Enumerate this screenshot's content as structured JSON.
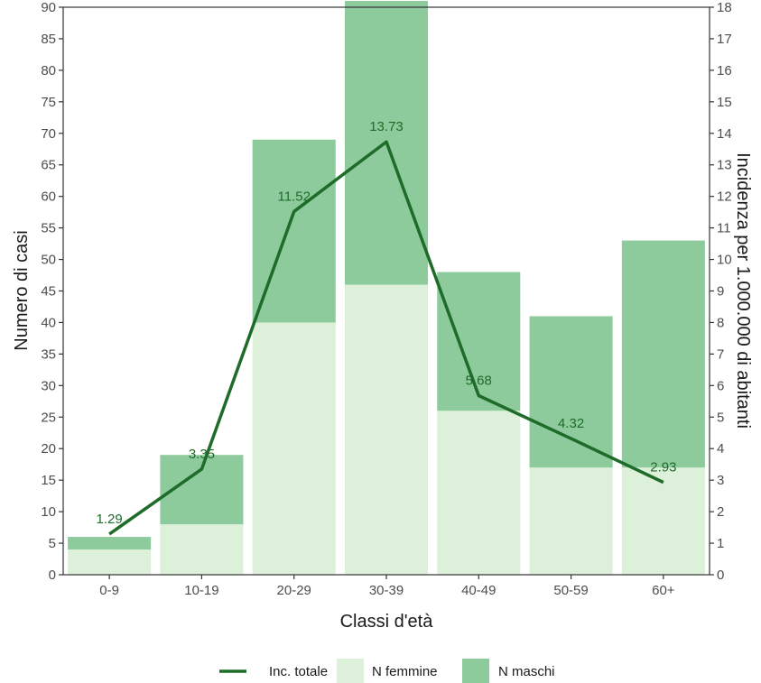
{
  "chart_data": {
    "type": "bar",
    "stacked": true,
    "categories": [
      "0-9",
      "10-19",
      "20-29",
      "30-39",
      "40-49",
      "50-59",
      "60+"
    ],
    "series": [
      {
        "name": "N femmine",
        "type": "bar",
        "axis": "left",
        "color": "#dcf0da",
        "values": [
          4,
          8,
          40,
          46,
          26,
          17,
          17
        ]
      },
      {
        "name": "N maschi",
        "type": "bar",
        "axis": "left",
        "color": "#8ecb9c",
        "values": [
          2,
          11,
          29,
          45,
          22,
          24,
          36
        ]
      },
      {
        "name": "Inc. totale",
        "type": "line",
        "axis": "right",
        "color": "#1e6b2a",
        "values": [
          1.29,
          3.35,
          11.52,
          13.73,
          5.68,
          4.32,
          2.93
        ],
        "labels": [
          "1.29",
          "3.35",
          "11.52",
          "13.73",
          "5.68",
          "4.32",
          "2.93"
        ]
      }
    ],
    "xlabel": "Classi d'età",
    "ylabel": "Numero di casi",
    "ylabel_right": "Incidenza per 1.000.000 di abitanti",
    "ylim": [
      0,
      90
    ],
    "ylim_right": [
      0,
      18
    ],
    "yticks": [
      "0",
      "5",
      "10",
      "15",
      "20",
      "25",
      "30",
      "35",
      "40",
      "45",
      "50",
      "55",
      "60",
      "65",
      "70",
      "75",
      "80",
      "85",
      "90"
    ],
    "yticks_right": [
      "0",
      "1",
      "2",
      "3",
      "4",
      "5",
      "6",
      "7",
      "8",
      "9",
      "10",
      "11",
      "12",
      "13",
      "14",
      "15",
      "16",
      "17",
      "18"
    ],
    "legend_order": [
      "Inc. totale",
      "N femmine",
      "N maschi"
    ],
    "legend_position": "bottom",
    "grid": false
  }
}
